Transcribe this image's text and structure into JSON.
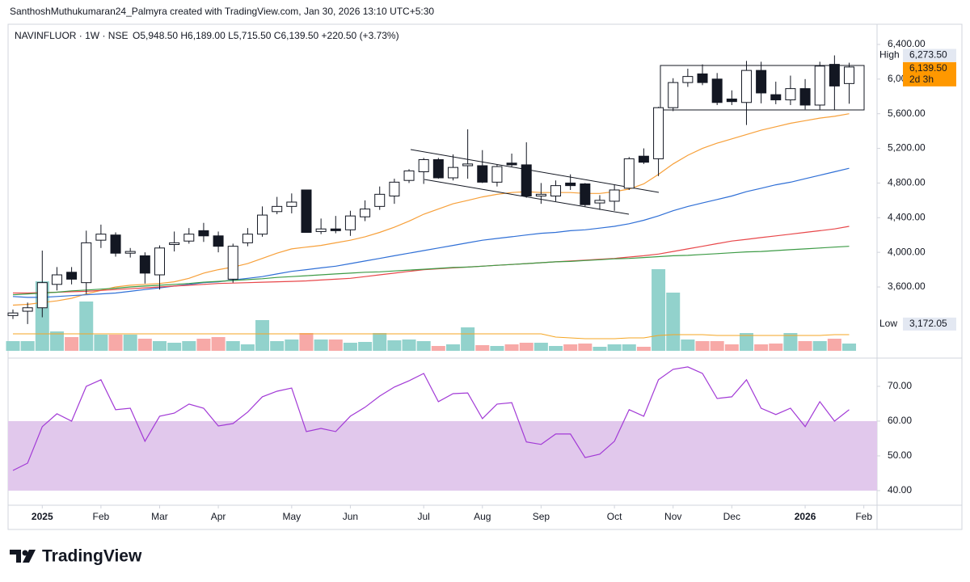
{
  "header": {
    "credit": "SanthoshMuthukumaran24_Palmyra created with TradingView.com, Jan 30, 2026 13:10 UTC+5:30"
  },
  "footer": {
    "logo": "TradingView"
  },
  "chart_data": [
    {
      "type": "candlestick",
      "title": "NAVINFLUOR · 1W · NSE",
      "quote": "O5,948.50 H6,189.00 L5,715.50 C6,139.50 +220.50 (+3.73%)",
      "up_color": "#ffffff",
      "down_color": "#131722",
      "open": [
        3270,
        3320,
        3360,
        3630,
        3770,
        3650,
        4140,
        4200,
        3990,
        3960,
        3740,
        4090,
        4130,
        4250,
        4190,
        3690,
        4110,
        4210,
        4470,
        4530,
        4720,
        4240,
        4270,
        4260,
        4410,
        4530,
        4650,
        4830,
        4930,
        5070,
        4860,
        5000,
        5000,
        4810,
        5030,
        5010,
        4650,
        4650,
        4800,
        4790,
        4570,
        4590,
        4740,
        5110,
        5080,
        5670,
        5960,
        6060,
        6000,
        5770,
        5730,
        6100,
        5820,
        5760,
        5890,
        5700,
        6170,
        5948.5
      ],
      "high": [
        3340,
        3420,
        4020,
        3830,
        3830,
        4250,
        4320,
        4230,
        4050,
        4000,
        4080,
        4240,
        4280,
        4340,
        4240,
        4100,
        4280,
        4530,
        4640,
        4680,
        4720,
        4390,
        4420,
        4480,
        4600,
        4760,
        4850,
        4960,
        5090,
        5090,
        5130,
        5420,
        5180,
        5010,
        5140,
        5270,
        4800,
        4830,
        4900,
        4800,
        4660,
        4780,
        5100,
        5200,
        5680,
        6010,
        6120,
        6170,
        6070,
        5870,
        6210,
        6200,
        5970,
        6040,
        6000,
        6200,
        6273.5,
        6189
      ],
      "low": [
        3230,
        3172.05,
        3250,
        3560,
        3630,
        3520,
        4050,
        3950,
        3940,
        3640,
        3570,
        4010,
        4100,
        4120,
        4000,
        3650,
        4070,
        4180,
        4440,
        4450,
        4230,
        4210,
        4220,
        4190,
        4360,
        4490,
        4560,
        4800,
        4790,
        4850,
        4830,
        4850,
        4800,
        4760,
        4990,
        4630,
        4560,
        4590,
        4720,
        4530,
        4490,
        4480,
        4720,
        5020,
        4880,
        5630,
        5910,
        5930,
        5700,
        5700,
        5470,
        5720,
        5710,
        5700,
        5650,
        5640,
        5640,
        5715.5
      ],
      "close": [
        3300,
        3360,
        3650,
        3740,
        3690,
        4110,
        4210,
        3990,
        4010,
        3760,
        4050,
        4110,
        4210,
        4190,
        4070,
        4070,
        4210,
        4430,
        4530,
        4580,
        4230,
        4270,
        4250,
        4420,
        4500,
        4670,
        4810,
        4940,
        5070,
        4860,
        4980,
        5020,
        4810,
        4990,
        5010,
        4650,
        4670,
        4770,
        4770,
        4550,
        4600,
        4720,
        5080,
        5040,
        5670,
        5960,
        6030,
        5960,
        5730,
        5740,
        6100,
        5840,
        5760,
        5890,
        5700,
        6150,
        5920,
        6139.5
      ],
      "volume": [
        12,
        12,
        86,
        24,
        17,
        61,
        20,
        20,
        20,
        15,
        12,
        10,
        12,
        15,
        17,
        12,
        8,
        38,
        12,
        14,
        22,
        14,
        14,
        10,
        11,
        22,
        13,
        14,
        12,
        6,
        8,
        29,
        7,
        6,
        8,
        10,
        10,
        6,
        8,
        9,
        5,
        8,
        8,
        5,
        101,
        72,
        14,
        12,
        12,
        8,
        22,
        8,
        9,
        22,
        12,
        12,
        15,
        9
      ],
      "volume_up_color": "#92d2cc",
      "volume_down_color": "#f7a9a7",
      "volume_ma": {
        "color": "#f5a623",
        "values": [
          21,
          21,
          21,
          21,
          21,
          21,
          21,
          21,
          21,
          21,
          21,
          21,
          21,
          21,
          21,
          21,
          21,
          21,
          21,
          21,
          21,
          21,
          21,
          21,
          21,
          21,
          21,
          21,
          21,
          21,
          21,
          21,
          21,
          21,
          21,
          21,
          21,
          17,
          16,
          15,
          15,
          15,
          16,
          16,
          19,
          20,
          20,
          20,
          19,
          19,
          19,
          19,
          19,
          19,
          19,
          19,
          20,
          20
        ]
      },
      "overlays": [
        {
          "color": "#f7a03a",
          "values": [
            3390,
            3400,
            3420,
            3440,
            3470,
            3520,
            3560,
            3600,
            3620,
            3630,
            3640,
            3660,
            3700,
            3760,
            3800,
            3830,
            3870,
            3930,
            3990,
            4040,
            4060,
            4080,
            4110,
            4140,
            4180,
            4230,
            4290,
            4360,
            4440,
            4500,
            4560,
            4600,
            4640,
            4670,
            4690,
            4700,
            4690,
            4690,
            4690,
            4680,
            4680,
            4700,
            4730,
            4790,
            4900,
            5020,
            5120,
            5200,
            5260,
            5310,
            5360,
            5410,
            5450,
            5490,
            5520,
            5550,
            5570,
            5600
          ]
        },
        {
          "color": "#2f6fd6",
          "values": [
            3490,
            3480,
            3480,
            3490,
            3500,
            3510,
            3520,
            3530,
            3550,
            3570,
            3590,
            3610,
            3630,
            3650,
            3660,
            3680,
            3700,
            3720,
            3750,
            3780,
            3800,
            3820,
            3840,
            3870,
            3900,
            3930,
            3960,
            3990,
            4020,
            4050,
            4080,
            4110,
            4140,
            4160,
            4180,
            4200,
            4220,
            4230,
            4250,
            4260,
            4280,
            4300,
            4330,
            4370,
            4420,
            4480,
            4530,
            4570,
            4610,
            4650,
            4700,
            4740,
            4780,
            4810,
            4850,
            4890,
            4930,
            4970
          ]
        },
        {
          "color": "#e8474a",
          "values": [
            3530,
            3530,
            3535,
            3540,
            3545,
            3550,
            3560,
            3570,
            3580,
            3590,
            3600,
            3610,
            3620,
            3630,
            3640,
            3645,
            3650,
            3655,
            3660,
            3665,
            3670,
            3680,
            3690,
            3700,
            3720,
            3740,
            3760,
            3780,
            3800,
            3810,
            3820,
            3830,
            3840,
            3850,
            3860,
            3870,
            3880,
            3890,
            3900,
            3910,
            3920,
            3930,
            3945,
            3960,
            3980,
            4010,
            4040,
            4070,
            4100,
            4130,
            4150,
            4170,
            4190,
            4210,
            4230,
            4250,
            4270,
            4300
          ]
        },
        {
          "color": "#3d9b46",
          "values": [
            3510,
            3520,
            3530,
            3540,
            3555,
            3565,
            3575,
            3585,
            3600,
            3610,
            3620,
            3630,
            3640,
            3655,
            3665,
            3675,
            3685,
            3695,
            3710,
            3720,
            3730,
            3740,
            3750,
            3760,
            3770,
            3775,
            3785,
            3795,
            3805,
            3815,
            3825,
            3830,
            3840,
            3850,
            3860,
            3870,
            3880,
            3890,
            3895,
            3905,
            3915,
            3925,
            3930,
            3940,
            3950,
            3960,
            3965,
            3975,
            3985,
            3995,
            4005,
            4010,
            4020,
            4030,
            4040,
            4050,
            4060,
            4070
          ]
        }
      ],
      "ylim": [
        2807,
        6493
      ],
      "yticks": [
        {
          "value": 3600,
          "label": "3,600.00"
        },
        {
          "value": 4000,
          "label": "4,000.00"
        },
        {
          "value": 4400,
          "label": "4,400.00"
        },
        {
          "value": 4800,
          "label": "4,800.00"
        },
        {
          "value": 5200,
          "label": "5,200.00"
        },
        {
          "value": 5600,
          "label": "5,600.00"
        },
        {
          "value": 6000,
          "label": "6,000.00"
        },
        {
          "value": 6400,
          "label": "6,400.00"
        }
      ],
      "xlim": [
        -0.33,
        58.9
      ],
      "xticks": [
        {
          "value": 2,
          "label": "2025"
        },
        {
          "value": 6,
          "label": "Feb"
        },
        {
          "value": 10,
          "label": "Mar"
        },
        {
          "value": 14,
          "label": "Apr"
        },
        {
          "value": 19,
          "label": "May"
        },
        {
          "value": 23,
          "label": "Jun"
        },
        {
          "value": 28,
          "label": "Jul"
        },
        {
          "value": 32,
          "label": "Aug"
        },
        {
          "value": 36,
          "label": "Sep"
        },
        {
          "value": 41,
          "label": "Oct"
        },
        {
          "value": 45,
          "label": "Nov"
        },
        {
          "value": 49,
          "label": "Dec"
        },
        {
          "value": 54,
          "label": "2026"
        },
        {
          "value": 58,
          "label": "Feb"
        }
      ],
      "high_marker": {
        "text": "High",
        "label": "6,273.50"
      },
      "low_marker": {
        "text": "Low",
        "label": "3,172.05"
      },
      "last_marker": {
        "label": "6,139.50",
        "countdown": "2d 3h",
        "color": "#ff9800"
      }
    },
    {
      "type": "line",
      "color": "#a23ad6",
      "values": [
        45.8,
        47.9,
        58.4,
        62.1,
        60,
        70,
        71.9,
        63.3,
        63.7,
        54.2,
        61.4,
        62.3,
        64.9,
        63.7,
        58.6,
        59.3,
        62.6,
        67,
        68.6,
        69.5,
        57,
        57.9,
        57,
        61.4,
        64,
        67.2,
        69.8,
        71.6,
        73.7,
        65.6,
        67.9,
        68.1,
        60.7,
        64.9,
        65.3,
        54,
        53.3,
        56.3,
        56.3,
        49.5,
        50.5,
        54.2,
        63.3,
        61.4,
        71.9,
        74.9,
        75.6,
        73.7,
        66.5,
        67,
        71.9,
        63.7,
        61.9,
        63.7,
        58.4,
        65.6,
        60,
        63.3
      ],
      "band": [
        40,
        60
      ],
      "band_color": "#e1c8ec",
      "ylim": [
        35.8,
        77.2
      ],
      "yticks": [
        {
          "value": 40,
          "label": "40.00"
        },
        {
          "value": 50,
          "label": "50.00"
        },
        {
          "value": 60,
          "label": "60.00"
        },
        {
          "value": 70,
          "label": "70.00"
        }
      ]
    }
  ]
}
